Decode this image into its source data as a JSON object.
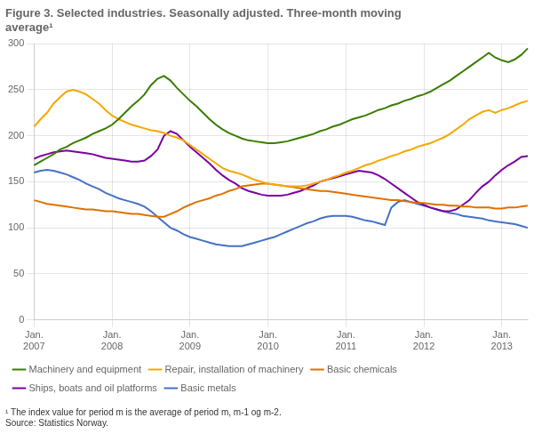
{
  "chart_data": {
    "type": "line",
    "title": "Figure 3. Selected industries. Seasonally adjusted. Three-month moving\naverage¹",
    "footnote": "¹ The index value for period m is the average of period m, m-1 og m-2.",
    "source": "Source: Statistics Norway.",
    "categories": [
      "Jan.\n2007",
      null,
      null,
      null,
      null,
      null,
      null,
      null,
      null,
      null,
      null,
      null,
      "Jan.\n2008",
      null,
      null,
      null,
      null,
      null,
      null,
      null,
      null,
      null,
      null,
      null,
      "Jan.\n2009",
      null,
      null,
      null,
      null,
      null,
      null,
      null,
      null,
      null,
      null,
      null,
      "Jan.\n2010",
      null,
      null,
      null,
      null,
      null,
      null,
      null,
      null,
      null,
      null,
      null,
      "Jan.\n2011",
      null,
      null,
      null,
      null,
      null,
      null,
      null,
      null,
      null,
      null,
      null,
      "Jan.\n2012",
      null,
      null,
      null,
      null,
      null,
      null,
      null,
      null,
      null,
      null,
      null,
      "Jan.\n2013",
      null,
      null,
      null,
      null
    ],
    "series": [
      {
        "name": "Machinery and equipment",
        "color": "#3a7d00",
        "values": [
          168,
          172,
          176,
          180,
          185,
          188,
          192,
          195,
          198,
          202,
          205,
          208,
          212,
          218,
          225,
          232,
          238,
          245,
          255,
          262,
          265,
          260,
          252,
          245,
          238,
          232,
          225,
          218,
          212,
          207,
          203,
          200,
          197,
          195,
          194,
          193,
          192,
          192,
          193,
          194,
          196,
          198,
          200,
          202,
          205,
          207,
          210,
          212,
          215,
          218,
          220,
          222,
          225,
          228,
          230,
          233,
          235,
          238,
          240,
          243,
          245,
          248,
          252,
          256,
          260,
          265,
          270,
          275,
          280,
          285,
          290,
          285,
          282,
          280,
          283,
          288,
          295
        ]
      },
      {
        "name": "Repair, installation of machinery",
        "color": "#f5a800",
        "values": [
          210,
          218,
          225,
          235,
          242,
          248,
          250,
          248,
          245,
          240,
          235,
          228,
          222,
          218,
          215,
          212,
          210,
          208,
          206,
          205,
          203,
          200,
          198,
          195,
          190,
          185,
          180,
          175,
          170,
          165,
          162,
          160,
          158,
          155,
          152,
          150,
          148,
          147,
          146,
          145,
          145,
          145,
          146,
          148,
          150,
          152,
          155,
          157,
          160,
          162,
          165,
          168,
          170,
          173,
          175,
          178,
          180,
          183,
          185,
          188,
          190,
          192,
          195,
          198,
          202,
          207,
          212,
          218,
          222,
          226,
          228,
          225,
          228,
          230,
          233,
          236,
          238
        ]
      },
      {
        "name": "Basic chemicals",
        "color": "#e07000",
        "values": [
          130,
          128,
          126,
          125,
          124,
          123,
          122,
          121,
          120,
          120,
          119,
          118,
          118,
          117,
          116,
          115,
          115,
          114,
          113,
          112,
          112,
          115,
          118,
          122,
          125,
          128,
          130,
          132,
          135,
          137,
          140,
          142,
          145,
          146,
          147,
          148,
          148,
          147,
          146,
          145,
          144,
          143,
          142,
          141,
          140,
          140,
          139,
          138,
          137,
          136,
          135,
          134,
          133,
          132,
          131,
          130,
          130,
          129,
          128,
          127,
          127,
          126,
          125,
          125,
          124,
          124,
          123,
          123,
          122,
          122,
          122,
          121,
          121,
          122,
          122,
          123,
          124
        ]
      },
      {
        "name": "Ships, boats and oil platforms",
        "color": "#7b00a0",
        "values": [
          175,
          178,
          180,
          182,
          183,
          184,
          183,
          182,
          181,
          180,
          178,
          176,
          175,
          174,
          173,
          172,
          172,
          173,
          178,
          185,
          200,
          205,
          202,
          195,
          188,
          182,
          176,
          170,
          163,
          157,
          152,
          148,
          143,
          140,
          138,
          136,
          135,
          135,
          135,
          136,
          138,
          140,
          143,
          146,
          150,
          152,
          154,
          156,
          158,
          160,
          162,
          161,
          160,
          157,
          153,
          148,
          143,
          138,
          133,
          128,
          125,
          122,
          120,
          118,
          118,
          120,
          125,
          130,
          138,
          145,
          150,
          157,
          163,
          168,
          172,
          177,
          178
        ]
      },
      {
        "name": "Basic metals",
        "color": "#4472c4",
        "values": [
          160,
          162,
          163,
          162,
          160,
          158,
          155,
          152,
          148,
          145,
          142,
          138,
          135,
          132,
          130,
          128,
          126,
          123,
          118,
          112,
          106,
          100,
          97,
          93,
          90,
          88,
          86,
          84,
          82,
          81,
          80,
          80,
          80,
          82,
          84,
          86,
          88,
          90,
          93,
          96,
          99,
          102,
          105,
          107,
          110,
          112,
          113,
          113,
          113,
          112,
          110,
          108,
          107,
          105,
          103,
          122,
          128,
          130,
          128,
          126,
          124,
          122,
          120,
          118,
          116,
          115,
          113,
          112,
          111,
          110,
          108,
          107,
          106,
          105,
          104,
          102,
          100
        ]
      }
    ],
    "ylim": [
      0,
      300
    ],
    "yticks": [
      0,
      50,
      100,
      150,
      200,
      250,
      300
    ],
    "grid": true,
    "legend": "bottom"
  }
}
